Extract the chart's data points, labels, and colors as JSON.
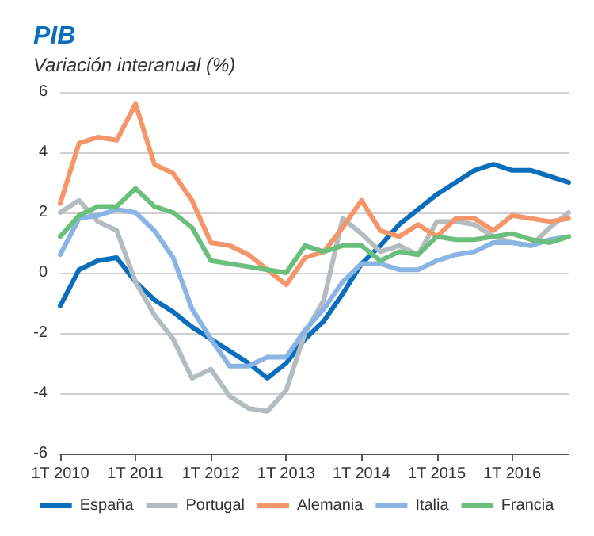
{
  "chart_data": {
    "type": "line",
    "title": "PIB",
    "subtitle": "Variación interanual (%)",
    "categories": [
      "1T 2010",
      null,
      null,
      null,
      "1T 2011",
      null,
      null,
      null,
      "1T 2012",
      null,
      null,
      null,
      "1T 2013",
      null,
      null,
      null,
      "1T 2014",
      null,
      null,
      null,
      "1T 2015",
      null,
      null,
      null,
      "1T 2016",
      null,
      null,
      null
    ],
    "series": [
      {
        "name": "España",
        "color": "#0a6ebd",
        "values": [
          -1.1,
          0.1,
          0.4,
          0.5,
          -0.3,
          -0.9,
          -1.3,
          -1.8,
          -2.2,
          -2.6,
          -3.0,
          -3.5,
          -3.0,
          -2.2,
          -1.6,
          -0.7,
          0.3,
          0.9,
          1.6,
          2.1,
          2.6,
          3.0,
          3.4,
          3.6,
          3.4,
          3.4,
          3.2,
          3.0
        ]
      },
      {
        "name": "Portugal",
        "color": "#b4bcbf",
        "values": [
          2.0,
          2.4,
          1.7,
          1.4,
          -0.3,
          -1.4,
          -2.2,
          -3.5,
          -3.2,
          -4.1,
          -4.5,
          -4.6,
          -3.9,
          -2.0,
          -0.9,
          1.8,
          1.3,
          0.7,
          0.9,
          0.6,
          1.7,
          1.7,
          1.6,
          1.2,
          1.0,
          0.9,
          1.5,
          2.0
        ]
      },
      {
        "name": "Alemania",
        "color": "#f5956a",
        "values": [
          2.3,
          4.3,
          4.5,
          4.4,
          5.6,
          3.6,
          3.3,
          2.4,
          1.0,
          0.9,
          0.6,
          0.1,
          -0.4,
          0.5,
          0.7,
          1.5,
          2.4,
          1.4,
          1.2,
          1.6,
          1.2,
          1.8,
          1.8,
          1.4,
          1.9,
          1.8,
          1.7,
          1.8
        ]
      },
      {
        "name": "Italia",
        "color": "#89b4e4",
        "values": [
          0.6,
          1.8,
          1.9,
          2.1,
          2.0,
          1.4,
          0.5,
          -1.2,
          -2.2,
          -3.1,
          -3.1,
          -2.8,
          -2.8,
          -1.9,
          -1.2,
          -0.3,
          0.3,
          0.3,
          0.1,
          0.1,
          0.4,
          0.6,
          0.7,
          1.0,
          1.0,
          0.9,
          1.1,
          1.2
        ]
      },
      {
        "name": "Francia",
        "color": "#6bbf7d",
        "values": [
          1.2,
          1.9,
          2.2,
          2.2,
          2.8,
          2.2,
          2.0,
          1.5,
          0.4,
          0.3,
          0.2,
          0.1,
          0.0,
          0.9,
          0.7,
          0.9,
          0.9,
          0.4,
          0.7,
          0.6,
          1.2,
          1.1,
          1.1,
          1.2,
          1.3,
          1.1,
          1.0,
          1.2
        ]
      }
    ],
    "ylim": [
      -6,
      6
    ],
    "yticks": [
      -6,
      -4,
      -2,
      0,
      2,
      4,
      6
    ],
    "grid": "y",
    "legend": "bottom",
    "marker": "none",
    "line_style": "solid"
  }
}
